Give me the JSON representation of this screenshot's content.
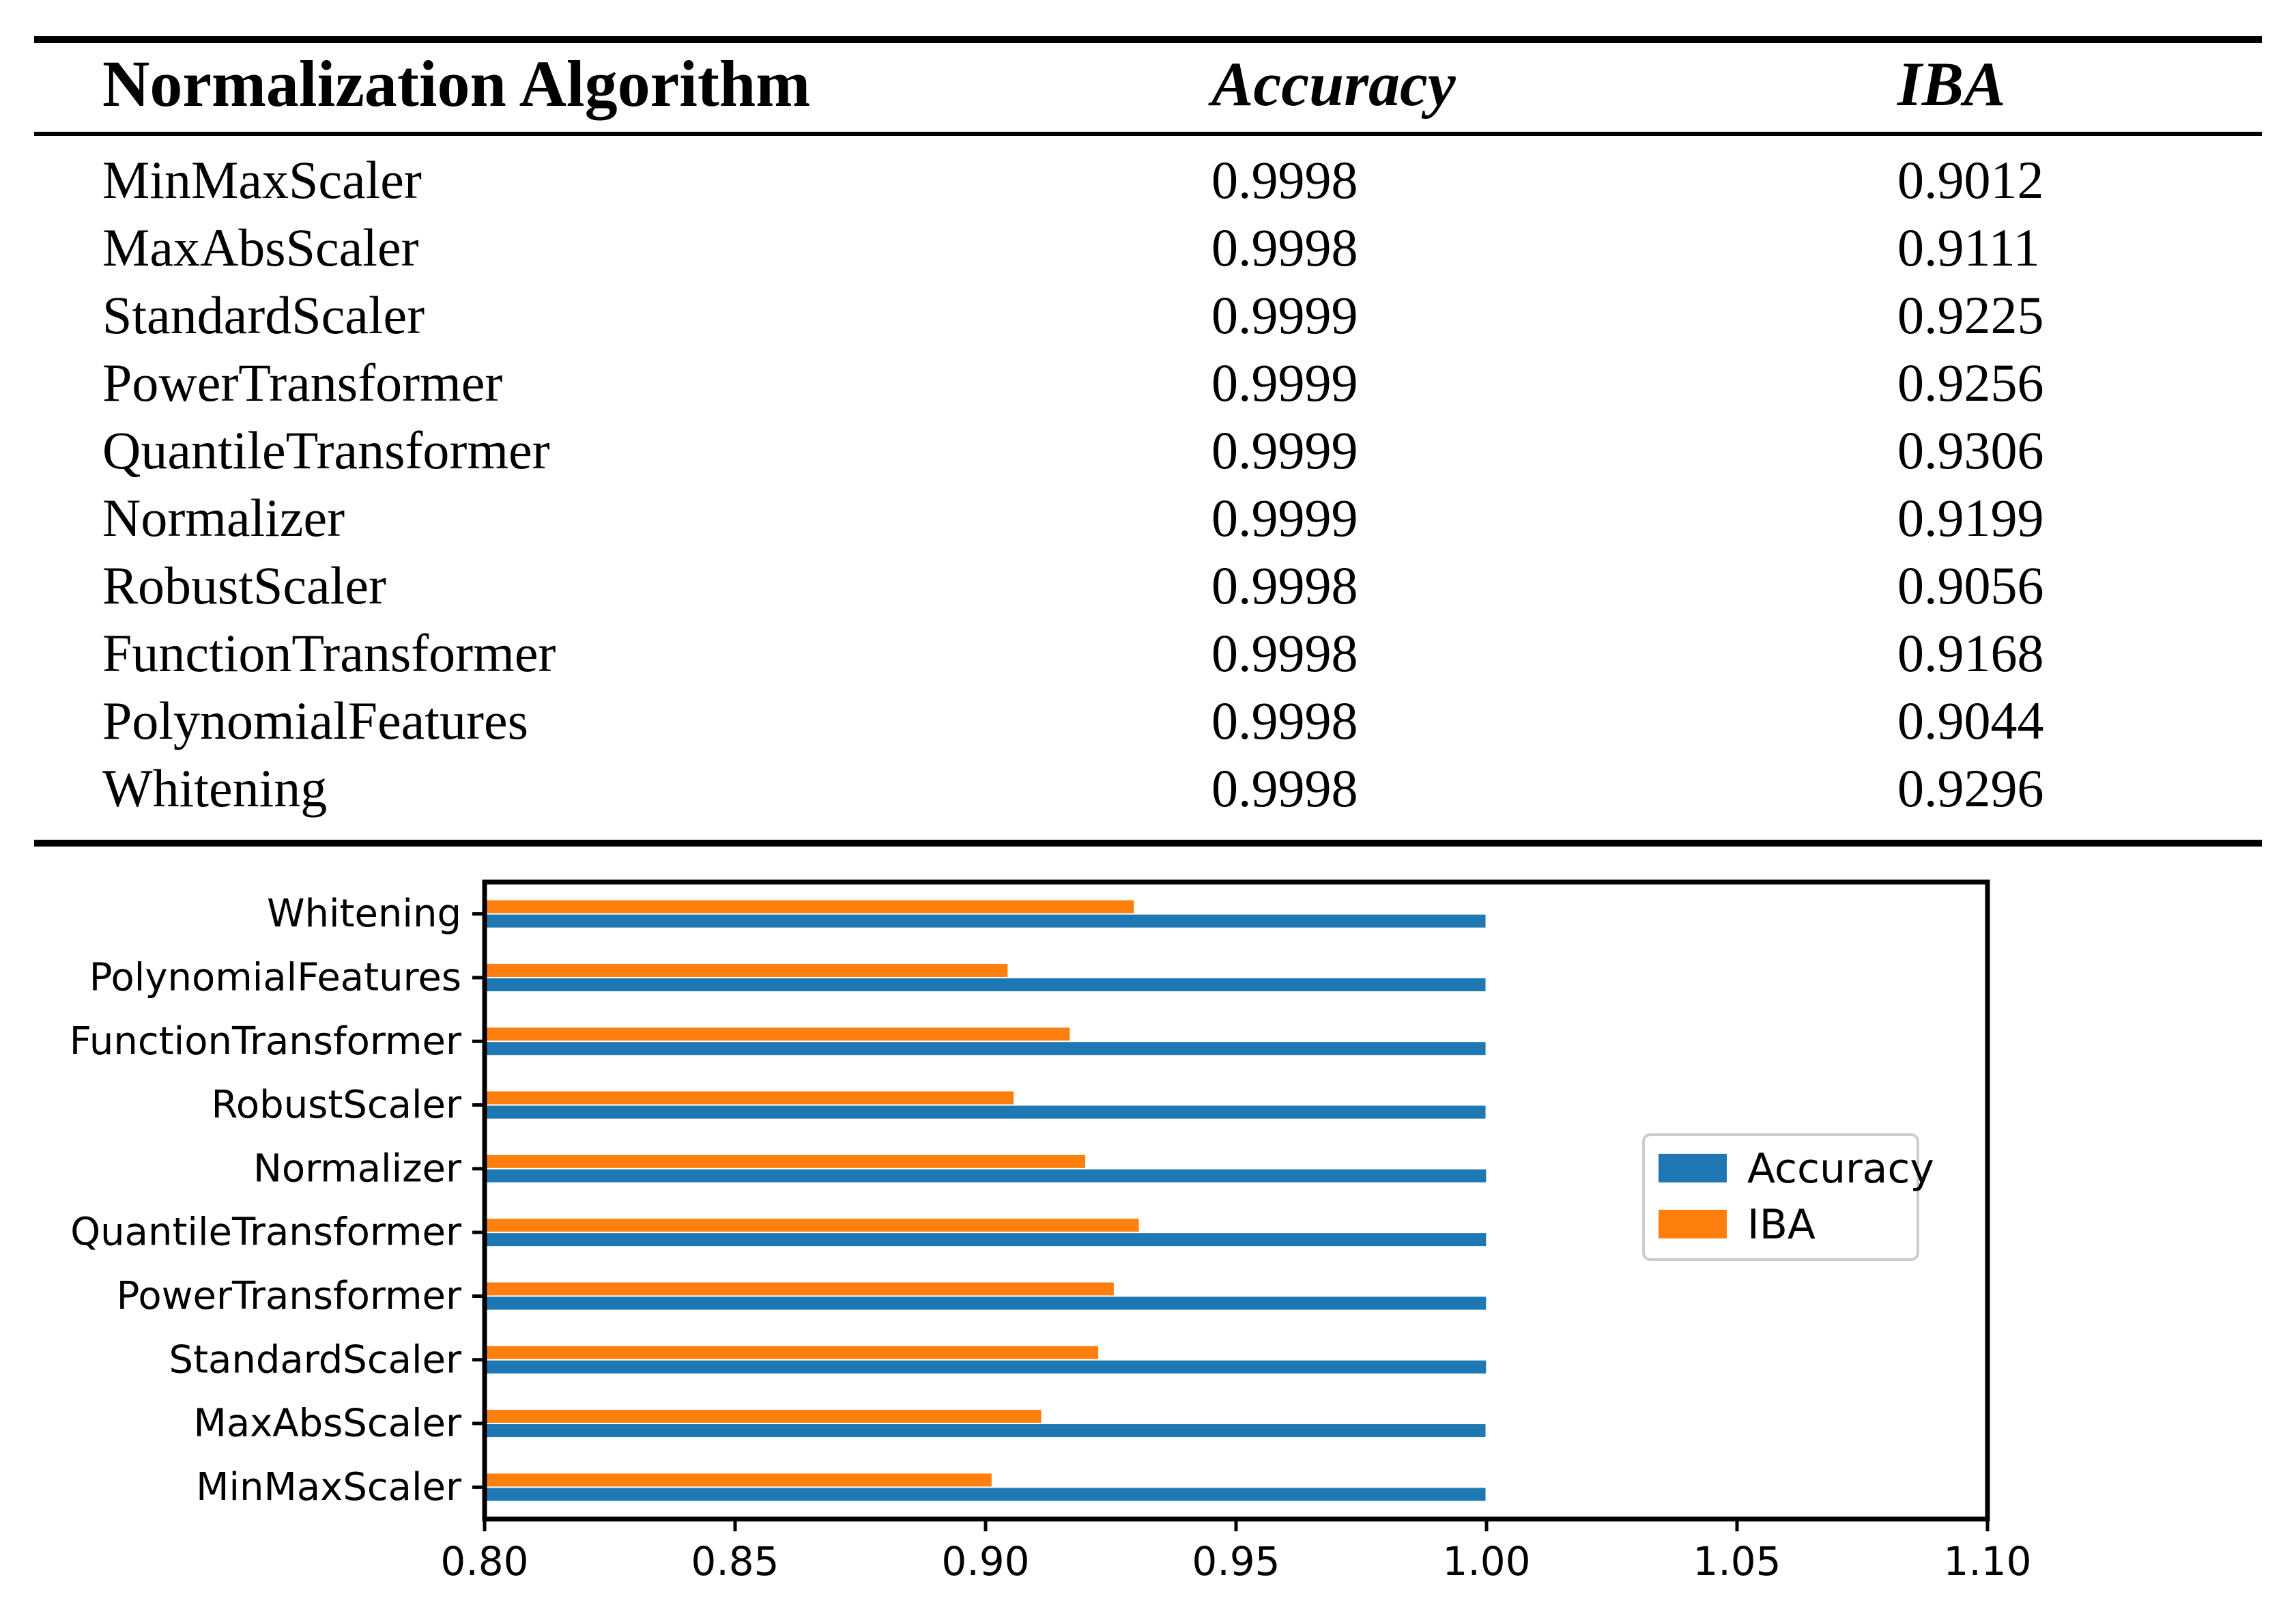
{
  "page": {
    "background": "#ffffff"
  },
  "table": {
    "headers": {
      "algorithm": "Normalization Algorithm",
      "accuracy": "Accuracy",
      "iba": "IBA"
    },
    "rows": [
      {
        "name": "MinMaxScaler",
        "accuracy": "0.9998",
        "iba": "0.9012"
      },
      {
        "name": "MaxAbsScaler",
        "accuracy": "0.9998",
        "iba": "0.9111"
      },
      {
        "name": "StandardScaler",
        "accuracy": "0.9999",
        "iba": "0.9225"
      },
      {
        "name": "PowerTransformer",
        "accuracy": "0.9999",
        "iba": "0.9256"
      },
      {
        "name": "QuantileTransformer",
        "accuracy": "0.9999",
        "iba": "0.9306"
      },
      {
        "name": "Normalizer",
        "accuracy": "0.9999",
        "iba": "0.9199"
      },
      {
        "name": "RobustScaler",
        "accuracy": "0.9998",
        "iba": "0.9056"
      },
      {
        "name": "FunctionTransformer",
        "accuracy": "0.9998",
        "iba": "0.9168"
      },
      {
        "name": "PolynomialFeatures",
        "accuracy": "0.9998",
        "iba": "0.9044"
      },
      {
        "name": "Whitening",
        "accuracy": "0.9998",
        "iba": "0.9296"
      }
    ]
  },
  "chart_data": {
    "type": "bar",
    "orientation": "horizontal",
    "title": "",
    "xlabel": "",
    "ylabel": "",
    "categories": [
      "MinMaxScaler",
      "MaxAbsScaler",
      "StandardScaler",
      "PowerTransformer",
      "QuantileTransformer",
      "Normalizer",
      "RobustScaler",
      "FunctionTransformer",
      "PolynomialFeatures",
      "Whitening"
    ],
    "series": [
      {
        "name": "Accuracy",
        "color": "#1f77b4",
        "values": [
          0.9998,
          0.9998,
          0.9999,
          0.9999,
          0.9999,
          0.9999,
          0.9998,
          0.9998,
          0.9998,
          0.9998
        ]
      },
      {
        "name": "IBA",
        "color": "#ff7f0e",
        "values": [
          0.9012,
          0.9111,
          0.9225,
          0.9256,
          0.9306,
          0.9199,
          0.9056,
          0.9168,
          0.9044,
          0.9296
        ]
      }
    ],
    "xlim": [
      0.8,
      1.1
    ],
    "xticks": [
      "0.80",
      "0.85",
      "0.90",
      "0.95",
      "1.00",
      "1.05",
      "1.10"
    ],
    "grid": false,
    "legend": {
      "entries": [
        "Accuracy",
        "IBA"
      ],
      "position": "center right",
      "border_color": "#cccccc",
      "background": "#ffffff"
    },
    "frame_color": "#000000"
  }
}
